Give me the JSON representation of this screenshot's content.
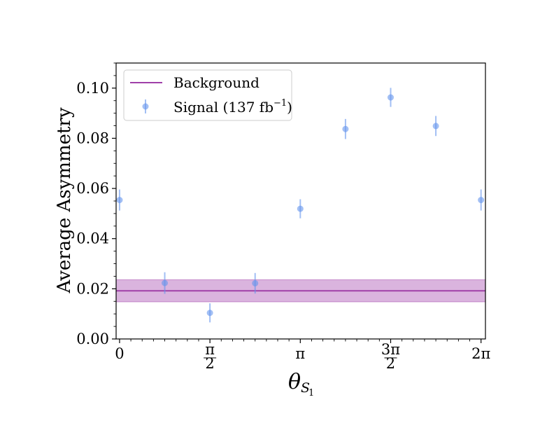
{
  "chart_data": {
    "type": "scatter",
    "xlabel": "θ",
    "xlabel_sub": "S",
    "xlabel_subsub": "1",
    "ylabel": "Average Asymmetry",
    "xlim": [
      -0.06,
      6.36
    ],
    "ylim": [
      0.0,
      0.11
    ],
    "x_ticks": [
      {
        "value": 0,
        "label": "0",
        "kind": "plain"
      },
      {
        "value": 1.5708,
        "num": "π",
        "den": "2",
        "kind": "fraction"
      },
      {
        "value": 3.1416,
        "label": "π",
        "kind": "plain"
      },
      {
        "value": 4.7124,
        "num": "3π",
        "den": "2",
        "kind": "fraction"
      },
      {
        "value": 6.2832,
        "label": "2π",
        "kind": "plain"
      }
    ],
    "x_minor_step": 0.19635,
    "y_ticks": [
      0.0,
      0.02,
      0.04,
      0.06,
      0.08,
      0.1
    ],
    "y_tick_labels": [
      "0.00",
      "0.02",
      "0.04",
      "0.06",
      "0.08",
      "0.10"
    ],
    "y_minor_step": 0.005,
    "background": {
      "name": "Background",
      "value": 0.0192,
      "band": [
        0.0148,
        0.0236
      ],
      "color": "#a040a8",
      "band_color": "#d8b0dc"
    },
    "signal": {
      "name_main": "Signal (137 fb",
      "name_sup": "−1",
      "name_close": ")",
      "color": "#6495ed",
      "x": [
        0,
        0.7854,
        1.5708,
        2.3562,
        3.1416,
        3.927,
        4.7124,
        5.4978,
        6.2832
      ],
      "y": [
        0.0554,
        0.0223,
        0.0104,
        0.0222,
        0.0519,
        0.0837,
        0.0963,
        0.0849,
        0.0554
      ],
      "err": [
        0.0042,
        0.0043,
        0.0038,
        0.0041,
        0.0038,
        0.004,
        0.0038,
        0.004,
        0.0042
      ]
    },
    "legend_position": "top-left",
    "grid": false
  }
}
